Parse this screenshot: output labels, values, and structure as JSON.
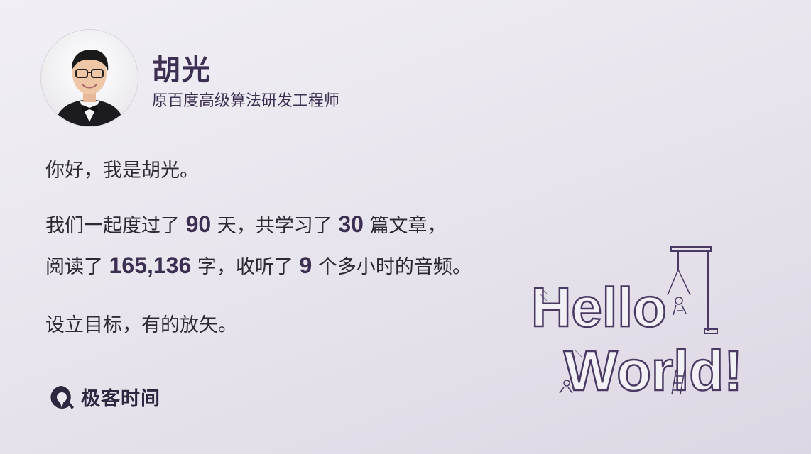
{
  "author": {
    "name": "胡光",
    "title": "原百度高级算法研发工程师"
  },
  "body": {
    "greeting": "你好，我是胡光。",
    "stats": {
      "l2_prefix": "我们一起度过了",
      "days": "90",
      "l2_mid": "天，共学习了",
      "articles": "30",
      "l2_suffix": "篇文章，",
      "l3_prefix": "阅读了",
      "chars": "165,136",
      "l3_mid": "字，收听了",
      "hours": "9",
      "l3_suffix": "个多小时的音频。"
    },
    "closing": "设立目标，有的放矢。"
  },
  "brand": {
    "name": "极客时间",
    "logo_icon": "geektime-logo-icon"
  },
  "illustration": {
    "icon": "hello-world-illustration",
    "text_line1": "Hello",
    "text_line2": "World!"
  },
  "colors": {
    "background": "#ebe8ef",
    "accent": "#3c2f52"
  }
}
